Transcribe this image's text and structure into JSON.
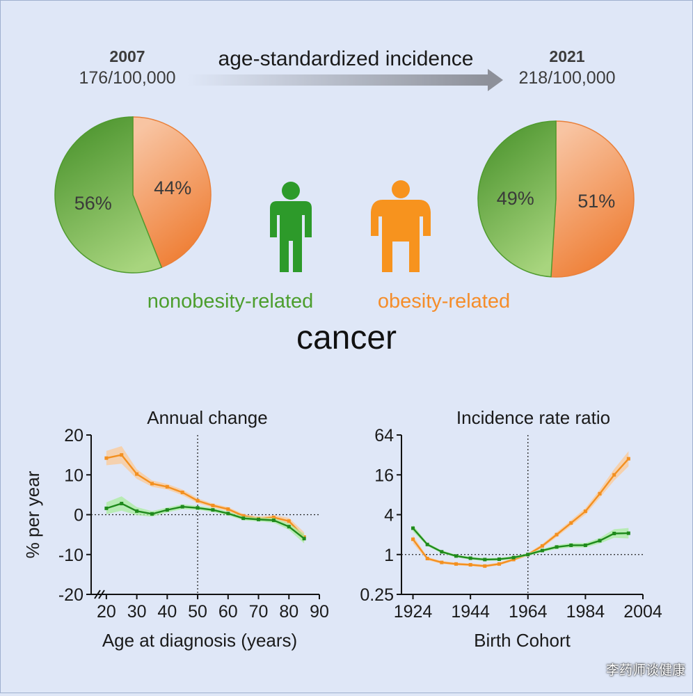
{
  "header": {
    "year_left": "2007",
    "rate_left": "176/100,000",
    "arrow_label": "age-standardized incidence",
    "year_right": "2021",
    "rate_right": "218/100,000"
  },
  "pies": [
    {
      "year": "2007",
      "nonobesity": 56,
      "obesity": 44,
      "nonobesity_label": "56%",
      "obesity_label": "44%"
    },
    {
      "year": "2021",
      "nonobesity": 49,
      "obesity": 51,
      "nonobesity_label": "49%",
      "obesity_label": "51%"
    }
  ],
  "legend": {
    "nonobesity": "nonobesity-related",
    "obesity": "obesity-related",
    "title": "cancer"
  },
  "colors": {
    "green": "#2d9a2a",
    "green_dark": "#1f8a1c",
    "orange": "#f7931e",
    "orange_line": "#f39020",
    "pie_green": "#5fa83f",
    "pie_orange": "#f28a45",
    "background": "#dfe7f7"
  },
  "watermark": "李药师谈健康",
  "chart_data": [
    {
      "type": "line",
      "title": "Annual change",
      "xlabel": "Age at diagnosis (years)",
      "ylabel": "% per year",
      "xlim": [
        15,
        90
      ],
      "ylim": [
        -20,
        20
      ],
      "xticks": [
        "20",
        "30",
        "40",
        "50",
        "60",
        "70",
        "80",
        "90"
      ],
      "yticks": [
        "20",
        "10",
        "0",
        "-10",
        "-20"
      ],
      "reference_x": 50,
      "reference_y": 0,
      "x": [
        20,
        25,
        30,
        35,
        40,
        45,
        50,
        55,
        60,
        65,
        70,
        75,
        80,
        85
      ],
      "series": [
        {
          "name": "obesity-related",
          "color": "#f39020",
          "values": [
            14.2,
            15.0,
            10.2,
            7.8,
            7.0,
            5.6,
            3.5,
            2.3,
            1.4,
            -0.3,
            -1.0,
            -0.7,
            -1.6,
            -5.6
          ],
          "band": [
            1.8,
            2.2,
            1.2,
            0.8,
            0.7,
            0.7,
            0.6,
            0.5,
            0.5,
            0.5,
            0.5,
            0.6,
            0.8,
            1.2
          ]
        },
        {
          "name": "nonobesity-related",
          "color": "#1f8a1c",
          "values": [
            1.6,
            2.8,
            0.9,
            0.2,
            1.2,
            2.0,
            1.7,
            1.2,
            0.3,
            -0.9,
            -1.2,
            -1.4,
            -3.0,
            -6.0
          ],
          "band": [
            1.5,
            1.8,
            1.0,
            0.7,
            0.6,
            0.6,
            0.5,
            0.5,
            0.5,
            0.5,
            0.5,
            0.6,
            0.8,
            1.2
          ]
        }
      ]
    },
    {
      "type": "line",
      "title": "Incidence rate ratio",
      "xlabel": "Birth Cohort",
      "ylabel": "",
      "xlim": [
        1920,
        2004
      ],
      "ylim": [
        0.25,
        64
      ],
      "yscale": "log2",
      "xticks": [
        "1924",
        "1944",
        "1964",
        "1984",
        "2004"
      ],
      "yticks": [
        "64",
        "16",
        "4",
        "1",
        "0.25"
      ],
      "reference_x": 1964,
      "reference_y": 1,
      "x": [
        1924,
        1929,
        1934,
        1939,
        1944,
        1949,
        1954,
        1959,
        1964,
        1969,
        1974,
        1979,
        1984,
        1989,
        1994,
        1999
      ],
      "series": [
        {
          "name": "obesity-related",
          "color": "#f39020",
          "values": [
            1.7,
            0.87,
            0.76,
            0.72,
            0.7,
            0.67,
            0.72,
            0.84,
            1.0,
            1.35,
            2.0,
            3.0,
            4.5,
            8.3,
            16.0,
            28.0
          ],
          "band": [
            0.15,
            0.06,
            0.05,
            0.05,
            0.05,
            0.05,
            0.05,
            0.05,
            0.05,
            0.07,
            0.09,
            0.1,
            0.12,
            0.15,
            0.22,
            0.3
          ]
        },
        {
          "name": "nonobesity-related",
          "color": "#1f8a1c",
          "values": [
            2.5,
            1.42,
            1.1,
            0.95,
            0.88,
            0.84,
            0.85,
            0.9,
            1.0,
            1.15,
            1.3,
            1.38,
            1.38,
            1.62,
            2.08,
            2.1
          ],
          "band": [
            0.12,
            0.06,
            0.05,
            0.05,
            0.05,
            0.05,
            0.05,
            0.05,
            0.05,
            0.06,
            0.07,
            0.08,
            0.08,
            0.1,
            0.16,
            0.2
          ]
        }
      ]
    }
  ]
}
